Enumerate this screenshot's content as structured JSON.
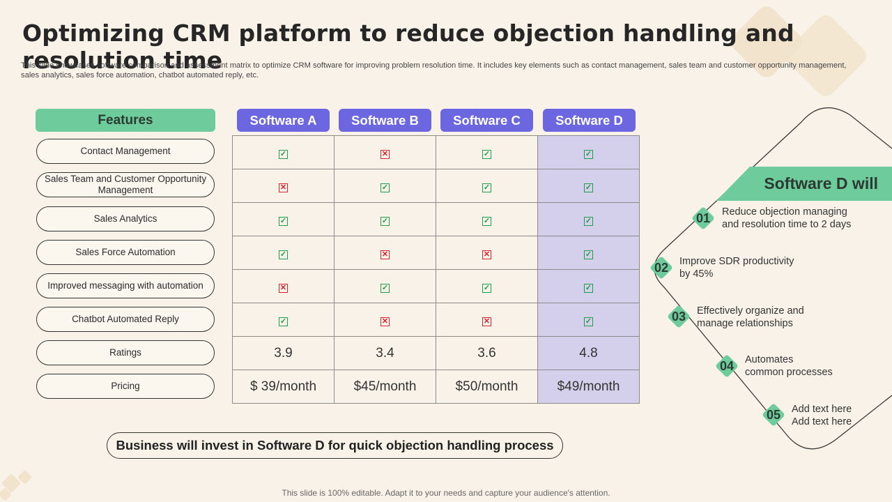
{
  "title": "Optimizing CRM platform to reduce objection handling and resolution time",
  "subtitle": "This slide showcases software comparison and assessment matrix to optimize CRM software for improving problem resolution time. It includes key elements such as contact management, sales team and customer opportunity management, sales analytics, sales force automation, chatbot automated reply, etc.",
  "features_header": "Features",
  "features": [
    "Contact Management",
    "Sales Team and Customer Opportunity Management",
    "Sales Analytics",
    "Sales Force Automation",
    "Improved  messaging with automation",
    "Chatbot Automated Reply",
    "Ratings",
    "Pricing"
  ],
  "software": [
    "Software A",
    "Software B",
    "Software C",
    "Software D"
  ],
  "highlight_column": 3,
  "matrix": [
    [
      true,
      false,
      true,
      true
    ],
    [
      false,
      true,
      true,
      true
    ],
    [
      true,
      true,
      true,
      true
    ],
    [
      true,
      false,
      false,
      true
    ],
    [
      false,
      true,
      true,
      true
    ],
    [
      true,
      false,
      false,
      true
    ]
  ],
  "ratings": [
    "3.9",
    "3.4",
    "3.6",
    "4.8"
  ],
  "pricing": [
    "$ 39/month",
    "$45/month",
    "$50/month",
    "$49/month"
  ],
  "conclusion": "Business will invest in Software D for quick objection handling process",
  "panel_title": "Software D will",
  "points": [
    {
      "num": "01",
      "text": [
        "Reduce objection managing",
        "and resolution time to 2 days"
      ]
    },
    {
      "num": "02",
      "text": [
        "Improve SDR productivity",
        "by 45%"
      ]
    },
    {
      "num": "03",
      "text": [
        "Effectively organize and",
        "manage relationships"
      ]
    },
    {
      "num": "04",
      "text": [
        "Automates",
        "common processes"
      ]
    },
    {
      "num": "05",
      "text": [
        "Add text here",
        "Add text here"
      ]
    }
  ],
  "footer": "This slide is 100% editable. Adapt it to your needs and capture your audience's attention.",
  "colors": {
    "accent_green": "#6ecb9c",
    "accent_purple": "#6c66e0",
    "highlight": "#d4cfea",
    "check": "#1e9e4a",
    "cross": "#d8232a"
  }
}
